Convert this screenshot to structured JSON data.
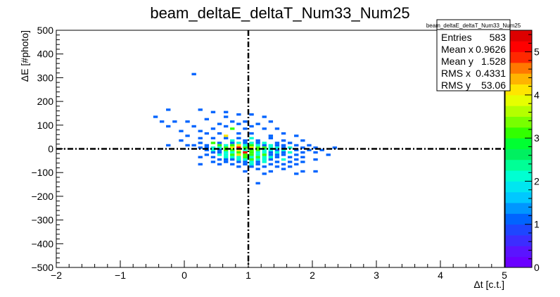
{
  "chart_data": {
    "type": "heatmap",
    "title": "beam_deltaE_deltaT_Num33_Num25",
    "xlabel": "Δt [c.t.]",
    "ylabel": "ΔE [#photo]",
    "xlim": [
      -2,
      5
    ],
    "ylim": [
      -500,
      500
    ],
    "xticks": [
      "−2",
      "−1",
      "0",
      "1",
      "2",
      "3",
      "4",
      "5"
    ],
    "yticks": [
      "500",
      "400",
      "300",
      "200",
      "100",
      "0",
      "−100",
      "−200",
      "−300",
      "−400",
      "−500"
    ],
    "xtick_values": [
      -2,
      -1,
      0,
      1,
      2,
      3,
      4,
      5
    ],
    "ytick_values": [
      500,
      400,
      300,
      200,
      100,
      0,
      -100,
      -200,
      -300,
      -400,
      -500
    ],
    "bin_width": {
      "x": 0.07,
      "y": 10
    },
    "reference_lines": {
      "x": 1,
      "y": 0
    },
    "colorbar": {
      "min": 0,
      "max": 5.5,
      "ticks": [
        "0",
        "1",
        "2",
        "3",
        "4",
        "5"
      ],
      "tick_values": [
        0,
        1,
        2,
        3,
        4,
        5
      ],
      "palette": [
        "#6a00ff",
        "#5a14ff",
        "#3c2dff",
        "#1e46ff",
        "#0064ff",
        "#0096ff",
        "#00c8ff",
        "#00e6f0",
        "#00ffd2",
        "#00ff96",
        "#00f060",
        "#00ff32",
        "#32ff00",
        "#78ff00",
        "#b4ff00",
        "#e6ff00",
        "#ffe600",
        "#ffb400",
        "#ff7800",
        "#ff2800",
        "#ff0000",
        "#dd0000"
      ]
    },
    "stats": {
      "title": "beam_deltaE_deltaT_Num33_Num25",
      "rows": [
        {
          "label": "Entries",
          "value": "583"
        },
        {
          "label": "Mean x",
          "value": "0.9626"
        },
        {
          "label": "Mean y",
          "value": "1.528"
        },
        {
          "label": "RMS x",
          "value": "0.4331"
        },
        {
          "label": "RMS y",
          "value": "53.06"
        }
      ]
    },
    "bins": [
      [
        0.15,
        315,
        1
      ],
      [
        -0.45,
        135,
        1
      ],
      [
        -0.25,
        165,
        1
      ],
      [
        0.25,
        165,
        1
      ],
      [
        0.45,
        155,
        1
      ],
      [
        0.65,
        155,
        1
      ],
      [
        -0.35,
        115,
        1
      ],
      [
        -0.15,
        115,
        1
      ],
      [
        0.05,
        115,
        1
      ],
      [
        0.35,
        125,
        1
      ],
      [
        0.65,
        135,
        1
      ],
      [
        0.85,
        145,
        1
      ],
      [
        1.05,
        145,
        1
      ],
      [
        1.25,
        135,
        1
      ],
      [
        -0.25,
        95,
        1
      ],
      [
        0.15,
        95,
        1
      ],
      [
        0.55,
        105,
        1
      ],
      [
        0.75,
        115,
        1
      ],
      [
        0.85,
        105,
        1
      ],
      [
        0.95,
        115,
        1
      ],
      [
        1.15,
        105,
        1
      ],
      [
        1.35,
        115,
        1
      ],
      [
        -0.05,
        75,
        1
      ],
      [
        0.25,
        75,
        1
      ],
      [
        0.45,
        85,
        1
      ],
      [
        0.65,
        95,
        1
      ],
      [
        0.75,
        85,
        3
      ],
      [
        0.95,
        85,
        1
      ],
      [
        1.05,
        95,
        1
      ],
      [
        1.25,
        85,
        1
      ],
      [
        1.45,
        85,
        1
      ],
      [
        0.05,
        55,
        1
      ],
      [
        0.35,
        65,
        1
      ],
      [
        0.55,
        65,
        1
      ],
      [
        0.65,
        55,
        4
      ],
      [
        0.85,
        65,
        1
      ],
      [
        1.05,
        65,
        1
      ],
      [
        1.35,
        55,
        1
      ],
      [
        1.55,
        65,
        1
      ],
      [
        1.75,
        55,
        1
      ],
      [
        -0.05,
        35,
        1
      ],
      [
        0.25,
        45,
        1
      ],
      [
        0.45,
        45,
        1
      ],
      [
        0.65,
        45,
        1
      ],
      [
        0.75,
        35,
        2
      ],
      [
        0.85,
        45,
        1
      ],
      [
        0.95,
        35,
        1
      ],
      [
        1.05,
        45,
        2
      ],
      [
        1.15,
        35,
        1
      ],
      [
        1.35,
        45,
        1
      ],
      [
        1.55,
        35,
        1
      ],
      [
        1.85,
        35,
        1
      ],
      [
        0.25,
        25,
        1
      ],
      [
        0.45,
        25,
        3
      ],
      [
        0.55,
        25,
        1
      ],
      [
        0.75,
        25,
        1
      ],
      [
        0.85,
        25,
        2
      ],
      [
        0.95,
        25,
        1
      ],
      [
        1.05,
        25,
        2
      ],
      [
        1.15,
        25,
        1
      ],
      [
        1.25,
        25,
        2
      ],
      [
        1.45,
        25,
        1
      ],
      [
        1.65,
        25,
        1
      ],
      [
        -0.25,
        15,
        1
      ],
      [
        0.05,
        15,
        1
      ],
      [
        0.15,
        15,
        1
      ],
      [
        0.35,
        15,
        1
      ],
      [
        0.55,
        15,
        3
      ],
      [
        0.65,
        15,
        2
      ],
      [
        0.75,
        15,
        3
      ],
      [
        0.85,
        15,
        4
      ],
      [
        0.95,
        15,
        2
      ],
      [
        1.05,
        15,
        3
      ],
      [
        1.15,
        15,
        2
      ],
      [
        1.25,
        15,
        1
      ],
      [
        1.35,
        15,
        2
      ],
      [
        1.45,
        15,
        1
      ],
      [
        1.55,
        15,
        1
      ],
      [
        1.75,
        15,
        1
      ],
      [
        1.95,
        15,
        1
      ],
      [
        0.25,
        5,
        1
      ],
      [
        0.35,
        5,
        1
      ],
      [
        0.45,
        5,
        2
      ],
      [
        0.55,
        5,
        2
      ],
      [
        0.65,
        5,
        3
      ],
      [
        0.75,
        5,
        4
      ],
      [
        0.85,
        5,
        5
      ],
      [
        0.95,
        5,
        3
      ],
      [
        1.05,
        5,
        4
      ],
      [
        1.15,
        5,
        3
      ],
      [
        1.25,
        5,
        3
      ],
      [
        1.35,
        5,
        2
      ],
      [
        1.45,
        5,
        2
      ],
      [
        1.55,
        5,
        1
      ],
      [
        1.65,
        5,
        2
      ],
      [
        1.85,
        5,
        1
      ],
      [
        2.05,
        5,
        1
      ],
      [
        2.35,
        5,
        1
      ],
      [
        0.35,
        -5,
        1
      ],
      [
        0.45,
        -5,
        2
      ],
      [
        0.55,
        -5,
        1
      ],
      [
        0.65,
        -5,
        3
      ],
      [
        0.75,
        -5,
        3
      ],
      [
        0.85,
        -5,
        4
      ],
      [
        0.95,
        -5,
        2
      ],
      [
        1.05,
        -5,
        3
      ],
      [
        1.15,
        -5,
        3
      ],
      [
        1.25,
        -5,
        2
      ],
      [
        1.35,
        -5,
        2
      ],
      [
        1.45,
        -5,
        1
      ],
      [
        1.55,
        -5,
        2
      ],
      [
        1.75,
        -5,
        1
      ],
      [
        1.95,
        -5,
        1
      ],
      [
        2.15,
        -5,
        1
      ],
      [
        0.45,
        -15,
        1
      ],
      [
        0.55,
        -15,
        1
      ],
      [
        0.65,
        -15,
        2
      ],
      [
        0.75,
        -15,
        2
      ],
      [
        0.85,
        -15,
        3
      ],
      [
        0.95,
        -15,
        5
      ],
      [
        1.05,
        -15,
        3
      ],
      [
        1.15,
        -15,
        2
      ],
      [
        1.25,
        -15,
        2
      ],
      [
        1.35,
        -15,
        1
      ],
      [
        1.45,
        -15,
        2
      ],
      [
        1.55,
        -15,
        1
      ],
      [
        1.65,
        -15,
        2
      ],
      [
        1.85,
        -15,
        1
      ],
      [
        2.05,
        -15,
        1
      ],
      [
        0.35,
        -25,
        1
      ],
      [
        0.55,
        -25,
        2
      ],
      [
        0.65,
        -25,
        2
      ],
      [
        0.75,
        -25,
        3
      ],
      [
        0.85,
        -25,
        4
      ],
      [
        0.95,
        -25,
        3
      ],
      [
        1.05,
        -25,
        3
      ],
      [
        1.15,
        -25,
        2
      ],
      [
        1.25,
        -25,
        3
      ],
      [
        1.35,
        -25,
        1
      ],
      [
        1.45,
        -25,
        1
      ],
      [
        1.55,
        -25,
        1
      ],
      [
        1.75,
        -25,
        1
      ],
      [
        2.25,
        -25,
        1
      ],
      [
        0.25,
        -35,
        1
      ],
      [
        0.45,
        -35,
        1
      ],
      [
        0.65,
        -35,
        2
      ],
      [
        0.75,
        -35,
        2
      ],
      [
        0.85,
        -35,
        2
      ],
      [
        0.95,
        -35,
        3
      ],
      [
        1.05,
        -35,
        2
      ],
      [
        1.15,
        -35,
        3
      ],
      [
        1.25,
        -35,
        2
      ],
      [
        1.35,
        -35,
        2
      ],
      [
        1.45,
        -35,
        1
      ],
      [
        1.65,
        -35,
        1
      ],
      [
        1.85,
        -35,
        1
      ],
      [
        0.55,
        -45,
        1
      ],
      [
        0.65,
        -45,
        1
      ],
      [
        0.75,
        -45,
        1
      ],
      [
        0.85,
        -45,
        2
      ],
      [
        0.95,
        -45,
        2
      ],
      [
        1.05,
        -45,
        3
      ],
      [
        1.15,
        -45,
        2
      ],
      [
        1.25,
        -45,
        2
      ],
      [
        1.35,
        -45,
        1
      ],
      [
        1.55,
        -45,
        2
      ],
      [
        1.75,
        -45,
        1
      ],
      [
        2.05,
        -45,
        1
      ],
      [
        0.45,
        -55,
        1
      ],
      [
        0.65,
        -55,
        1
      ],
      [
        0.85,
        -55,
        1
      ],
      [
        0.95,
        -55,
        1
      ],
      [
        1.05,
        -55,
        2
      ],
      [
        1.15,
        -55,
        1
      ],
      [
        1.25,
        -55,
        2
      ],
      [
        1.45,
        -55,
        1
      ],
      [
        1.65,
        -55,
        1
      ],
      [
        1.85,
        -55,
        1
      ],
      [
        0.25,
        -65,
        1
      ],
      [
        0.55,
        -65,
        1
      ],
      [
        0.75,
        -65,
        1
      ],
      [
        0.95,
        -65,
        1
      ],
      [
        1.05,
        -65,
        2
      ],
      [
        1.15,
        -65,
        1
      ],
      [
        1.35,
        -65,
        1
      ],
      [
        1.55,
        -65,
        1
      ],
      [
        1.75,
        -65,
        1
      ],
      [
        0.85,
        -75,
        1
      ],
      [
        1.05,
        -75,
        1
      ],
      [
        1.25,
        -75,
        1
      ],
      [
        1.45,
        -75,
        1
      ],
      [
        1.65,
        -75,
        1
      ],
      [
        0.95,
        -95,
        1
      ],
      [
        1.15,
        -85,
        1
      ],
      [
        1.35,
        -95,
        1
      ],
      [
        1.55,
        -85,
        1
      ],
      [
        1.85,
        -95,
        1
      ],
      [
        2.05,
        -95,
        1
      ],
      [
        1.25,
        -105,
        1
      ],
      [
        1.75,
        -105,
        1
      ],
      [
        1.15,
        -145,
        1
      ]
    ]
  }
}
